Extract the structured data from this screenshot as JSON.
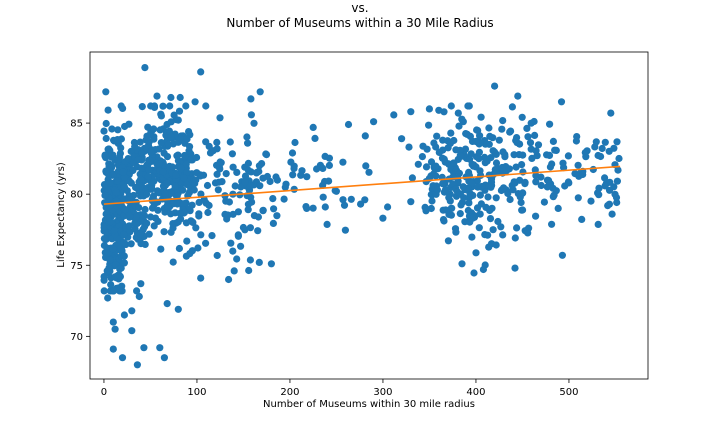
{
  "chart_data": {
    "type": "scatter",
    "title_lines": [
      "vs.",
      "Number of Museums within a 30 Mile Radius"
    ],
    "xlabel": "Number of Museums within 30 mile radius",
    "ylabel": "Life Expectancy (yrs)",
    "xlim": [
      -15,
      585
    ],
    "ylim": [
      67,
      90
    ],
    "xticks": [
      0,
      100,
      200,
      300,
      400,
      500
    ],
    "yticks": [
      70,
      75,
      80,
      85
    ],
    "grid": false,
    "colors": {
      "points": "#1f77b4",
      "trend": "#ff7f0e"
    },
    "trend_line": {
      "x": [
        0,
        555
      ],
      "y": [
        79.3,
        81.95
      ]
    },
    "clusters": [
      {
        "x_range": [
          0,
          20
        ],
        "y_mean": 78.5,
        "y_sd": 2.8,
        "count": 260
      },
      {
        "x_range": [
          20,
          45
        ],
        "y_mean": 79.5,
        "y_sd": 2.4,
        "count": 130
      },
      {
        "x_range": [
          45,
          95
        ],
        "y_mean": 81.2,
        "y_sd": 2.1,
        "count": 260
      },
      {
        "x_range": [
          95,
          175
        ],
        "y_mean": 80.2,
        "y_sd": 2.3,
        "count": 110
      },
      {
        "x_range": [
          175,
          260
        ],
        "y_mean": 80.6,
        "y_sd": 1.5,
        "count": 40
      },
      {
        "x_range": [
          260,
          345
        ],
        "y_mean": 81.5,
        "y_sd": 1.6,
        "count": 12
      },
      {
        "x_range": [
          345,
          420
        ],
        "y_mean": 81.3,
        "y_sd": 2.4,
        "count": 200
      },
      {
        "x_range": [
          420,
          470
        ],
        "y_mean": 80.8,
        "y_sd": 2.4,
        "count": 80
      },
      {
        "x_range": [
          470,
          555
        ],
        "y_mean": 81.3,
        "y_sd": 1.7,
        "count": 70
      }
    ],
    "points": [
      {
        "x": 44,
        "y": 88.9
      },
      {
        "x": 104,
        "y": 88.6
      },
      {
        "x": 420,
        "y": 87.6
      },
      {
        "x": 2,
        "y": 87.2
      },
      {
        "x": 168,
        "y": 87.2
      },
      {
        "x": 57,
        "y": 86.9
      },
      {
        "x": 72,
        "y": 86.8
      },
      {
        "x": 82,
        "y": 86.8
      },
      {
        "x": 445,
        "y": 86.9
      },
      {
        "x": 492,
        "y": 86.5
      },
      {
        "x": 158,
        "y": 86.7
      },
      {
        "x": 98,
        "y": 86.5
      },
      {
        "x": 330,
        "y": 85.8
      },
      {
        "x": 545,
        "y": 85.7
      },
      {
        "x": 225,
        "y": 84.7
      },
      {
        "x": 263,
        "y": 84.9
      },
      {
        "x": 290,
        "y": 85.1
      },
      {
        "x": 10,
        "y": 71.0
      },
      {
        "x": 12,
        "y": 70.5
      },
      {
        "x": 22,
        "y": 71.5
      },
      {
        "x": 30,
        "y": 70.4
      },
      {
        "x": 10,
        "y": 69.1
      },
      {
        "x": 43,
        "y": 69.2
      },
      {
        "x": 60,
        "y": 69.2
      },
      {
        "x": 65,
        "y": 68.5
      },
      {
        "x": 20,
        "y": 68.5
      },
      {
        "x": 36,
        "y": 68.0
      },
      {
        "x": 30,
        "y": 71.8
      },
      {
        "x": 80,
        "y": 71.9
      },
      {
        "x": 68,
        "y": 72.3
      },
      {
        "x": 38,
        "y": 72.8
      },
      {
        "x": 4,
        "y": 72.7
      },
      {
        "x": 408,
        "y": 74.7
      },
      {
        "x": 442,
        "y": 74.8
      },
      {
        "x": 385,
        "y": 75.1
      },
      {
        "x": 493,
        "y": 75.7
      },
      {
        "x": 134,
        "y": 74.0
      },
      {
        "x": 104,
        "y": 74.1
      },
      {
        "x": 167,
        "y": 75.2
      },
      {
        "x": 140,
        "y": 74.6
      },
      {
        "x": 180,
        "y": 75.1
      },
      {
        "x": 218,
        "y": 79.0
      },
      {
        "x": 238,
        "y": 79.1
      },
      {
        "x": 276,
        "y": 79.3
      },
      {
        "x": 305,
        "y": 79.1
      },
      {
        "x": 250,
        "y": 80.2
      },
      {
        "x": 338,
        "y": 82.1
      },
      {
        "x": 320,
        "y": 83.9
      },
      {
        "x": 350,
        "y": 86.0
      },
      {
        "x": 360,
        "y": 85.9
      }
    ]
  }
}
